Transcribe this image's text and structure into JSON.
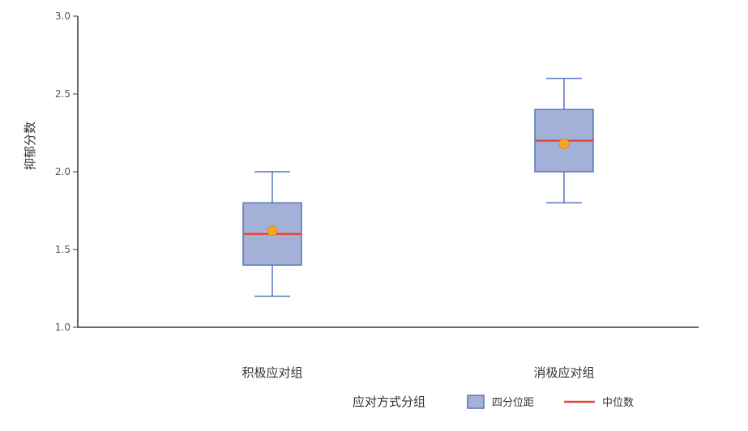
{
  "chart_data": {
    "type": "box",
    "title": "",
    "xlabel": "应对方式分组",
    "ylabel": "抑郁分数",
    "ylim": [
      1.0,
      3.0
    ],
    "yticks": [
      "1.0",
      "1.5",
      "2.0",
      "2.5",
      "3.0"
    ],
    "grid": false,
    "legend_position": "bottom-right",
    "categories": [
      "积极应对组",
      "消极应对组"
    ],
    "boxes": [
      {
        "category": "积极应对组",
        "min": 1.2,
        "q1": 1.4,
        "median": 1.6,
        "q3": 1.8,
        "max": 2.0,
        "mean": 1.62
      },
      {
        "category": "消极应对组",
        "min": 1.8,
        "q1": 2.0,
        "median": 2.2,
        "q3": 2.4,
        "max": 2.6,
        "mean": 2.18
      }
    ],
    "legend": [
      {
        "label": "四分位距",
        "kind": "box"
      },
      {
        "label": "中位数",
        "kind": "line"
      }
    ],
    "colors": {
      "box_fill": "#a3b1d8",
      "box_stroke": "#5a72bf",
      "median": "#e04a3a",
      "mean_fill": "#f5a623",
      "mean_stroke": "#e08c14",
      "axis": "#333333"
    }
  }
}
